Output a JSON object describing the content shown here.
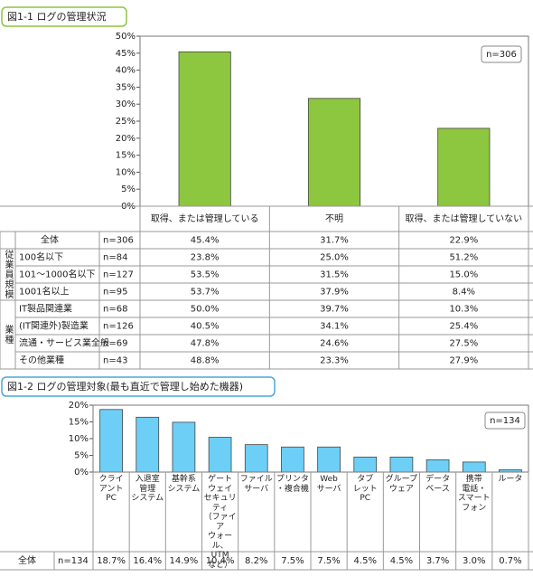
{
  "chart_data": [
    {
      "type": "bar",
      "title": "図1-1 ログの管理状況",
      "annotation": "n=306",
      "categories": [
        "取得、または管理している",
        "不明",
        "取得、または管理していない"
      ],
      "values": [
        45.4,
        31.7,
        22.9
      ],
      "color": "#8dc63f",
      "grid": false,
      "ylim": [
        0,
        50
      ],
      "yticks": [
        {
          "value": 0,
          "label": "0%"
        },
        {
          "value": 5,
          "label": "5%"
        },
        {
          "value": 10,
          "label": "10%"
        },
        {
          "value": 15,
          "label": "15%"
        },
        {
          "value": 20,
          "label": "20%"
        },
        {
          "value": 25,
          "label": "25%"
        },
        {
          "value": 30,
          "label": "30%"
        },
        {
          "value": 35,
          "label": "35%"
        },
        {
          "value": 40,
          "label": "40%"
        },
        {
          "value": 45,
          "label": "45%"
        },
        {
          "value": 50,
          "label": "50%"
        }
      ],
      "table": {
        "total": {
          "label": "全体",
          "n": "n=306",
          "cells": [
            "45.4%",
            "31.7%",
            "22.9%"
          ]
        },
        "groups": [
          {
            "label": "従業員規模",
            "rows": [
              {
                "label": "100名以下",
                "n": "n=84",
                "cells": [
                  "23.8%",
                  "25.0%",
                  "51.2%"
                ]
              },
              {
                "label": "101～1000名以下",
                "n": "n=127",
                "cells": [
                  "53.5%",
                  "31.5%",
                  "15.0%"
                ]
              },
              {
                "label": "1001名以上",
                "n": "n=95",
                "cells": [
                  "53.7%",
                  "37.9%",
                  "8.4%"
                ]
              }
            ]
          },
          {
            "label": "業種",
            "rows": [
              {
                "label": "IT製品関連業",
                "n": "n=68",
                "cells": [
                  "50.0%",
                  "39.7%",
                  "10.3%"
                ]
              },
              {
                "label": "(IT関連外)製造業",
                "n": "n=126",
                "cells": [
                  "40.5%",
                  "34.1%",
                  "25.4%"
                ]
              },
              {
                "label": "流通・サービス業全般",
                "n": "n=69",
                "cells": [
                  "47.8%",
                  "24.6%",
                  "27.5%"
                ]
              },
              {
                "label": "その他業種",
                "n": "n=43",
                "cells": [
                  "48.8%",
                  "23.3%",
                  "27.9%"
                ]
              }
            ]
          }
        ]
      }
    },
    {
      "type": "bar",
      "title": "図1-2 ログの管理対象(最も直近で管理し始めた機器)",
      "annotation": "n=134",
      "categories": [
        "クライ\nアント\nPC",
        "入退室\n管理\nシステム",
        "基幹系\nシステム",
        "ゲート\nウェイ\nセキュリ\nティ\n（ファイア\nウォール、\nUTM\nなど）",
        "ファイル\nサーバ",
        "プリンタ\n・複合機",
        "Web\nサーバ",
        "タブ\nレット\nPC",
        "グループ\nウェア",
        "データ\nベース",
        "携帯\n電話・\nスマート\nフォン",
        "ルータ"
      ],
      "values": [
        18.7,
        16.4,
        14.9,
        10.4,
        8.2,
        7.5,
        7.5,
        4.5,
        4.5,
        3.7,
        3.0,
        0.7
      ],
      "value_labels": [
        "18.7%",
        "16.4%",
        "14.9%",
        "10.4%",
        "8.2%",
        "7.5%",
        "7.5%",
        "4.5%",
        "4.5%",
        "3.7%",
        "3.0%",
        "0.7%"
      ],
      "row_label": "全体",
      "row_n": "n=134",
      "color": "#6dcff6",
      "grid": false,
      "ylim": [
        0,
        20
      ],
      "yticks": [
        {
          "value": 0,
          "label": "0%"
        },
        {
          "value": 5,
          "label": "5%"
        },
        {
          "value": 10,
          "label": "10%"
        },
        {
          "value": 15,
          "label": "15%"
        },
        {
          "value": 20,
          "label": "20%"
        }
      ]
    }
  ]
}
